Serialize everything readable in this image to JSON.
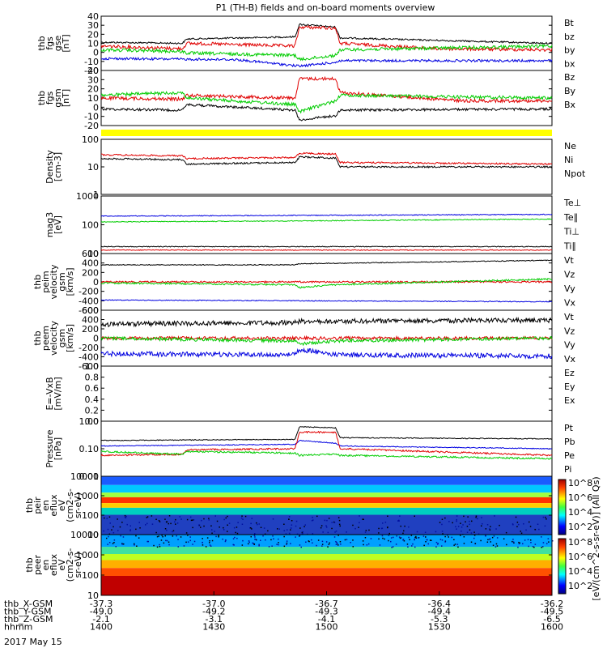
{
  "title": "P1 (TH-B) fields and on-board moments overview",
  "colors": {
    "black": "#000000",
    "red": "#e00000",
    "green": "#00cc00",
    "blue": "#0000e0",
    "yellow": "#ffff00"
  },
  "panels": [
    {
      "id": "fgs-gse",
      "ylabel": [
        "thb",
        "fgs",
        "gse",
        "[nT]"
      ],
      "yticks": [
        "40",
        "30",
        "20",
        "10",
        "0",
        "-10",
        "-20"
      ],
      "legend": [
        {
          "t": "Bt",
          "c": "black"
        },
        {
          "t": "bz",
          "c": "red"
        },
        {
          "t": "by",
          "c": "green"
        },
        {
          "t": "bx",
          "c": "blue"
        }
      ]
    },
    {
      "id": "fgs-gsm",
      "ylabel": [
        "thb",
        "fgs",
        "gsm",
        "[nT]"
      ],
      "yticks": [
        "40",
        "30",
        "20",
        "10",
        "0",
        "-10",
        "-20"
      ],
      "legend": [
        {
          "t": "Bz",
          "c": "red"
        },
        {
          "t": "By",
          "c": "green"
        },
        {
          "t": "Bx",
          "c": "black"
        }
      ]
    },
    {
      "id": "flag",
      "ylabel": [],
      "yticks": [],
      "legend": []
    },
    {
      "id": "density",
      "ylabel": [
        "Density",
        "[cm-3]"
      ],
      "yticks": [
        "100",
        "10",
        "1"
      ],
      "legend": [
        {
          "t": "Ne",
          "c": "red"
        },
        {
          "t": "Ni",
          "c": "black"
        },
        {
          "t": "Npot",
          "c": "blue"
        }
      ]
    },
    {
      "id": "temp",
      "ylabel": [
        "mag3",
        "[eV]"
      ],
      "yticks": [
        "1000",
        "100",
        "10"
      ],
      "legend": [
        {
          "t": "Te⊥",
          "c": "red"
        },
        {
          "t": "Te∥",
          "c": "black"
        },
        {
          "t": "Ti⊥",
          "c": "green"
        },
        {
          "t": "Ti∥",
          "c": "green"
        }
      ]
    },
    {
      "id": "peim",
      "ylabel": [
        "thb",
        "peim",
        "velocity",
        "gsm",
        "[km/s]"
      ],
      "yticks": [
        "600",
        "400",
        "200",
        "0",
        "-200",
        "-400",
        "-600"
      ],
      "legend": [
        {
          "t": "Vt",
          "c": "black"
        },
        {
          "t": "Vz",
          "c": "red"
        },
        {
          "t": "Vy",
          "c": "green"
        },
        {
          "t": "Vx",
          "c": "blue"
        }
      ]
    },
    {
      "id": "peem",
      "ylabel": [
        "thb",
        "peem",
        "velocity",
        "gsm",
        "[km/s]"
      ],
      "yticks": [
        "600",
        "400",
        "200",
        "0",
        "-200",
        "-400",
        "-600"
      ],
      "legend": [
        {
          "t": "Vt",
          "c": "black"
        },
        {
          "t": "Vz",
          "c": "red"
        },
        {
          "t": "Vy",
          "c": "green"
        },
        {
          "t": "Vx",
          "c": "blue"
        }
      ]
    },
    {
      "id": "efield",
      "ylabel": [
        "E=-VxB",
        "[mV/m]"
      ],
      "yticks": [
        "1.0",
        "0.8",
        "0.6",
        "0.4",
        "0.2",
        "0.0"
      ],
      "legend": [
        {
          "t": "Ez",
          "c": "red"
        },
        {
          "t": "Ey",
          "c": "green"
        },
        {
          "t": "Ex",
          "c": "blue"
        }
      ]
    },
    {
      "id": "pressure",
      "ylabel": [
        "Pressure",
        "[nPa]"
      ],
      "yticks": [
        "1.00",
        "0.10",
        "0.01"
      ],
      "legend": [
        {
          "t": "Pt",
          "c": "black"
        },
        {
          "t": "Pb",
          "c": "red"
        },
        {
          "t": "Pe",
          "c": "green"
        },
        {
          "t": "Pi",
          "c": "blue"
        }
      ]
    },
    {
      "id": "peir",
      "ylabel": [
        "thb",
        "peir",
        "en",
        "eflux",
        "eV",
        "(cm2-s-",
        "sr-eV)"
      ],
      "yticks": [
        "10000",
        "1000",
        "100",
        "10"
      ],
      "legend": []
    },
    {
      "id": "peer",
      "ylabel": [
        "thb",
        "peer",
        "en",
        "eflux",
        "eV",
        "(cm2-s-",
        "sr-eV)"
      ],
      "yticks": [
        "10000",
        "1000",
        "100",
        "10"
      ],
      "legend": []
    }
  ],
  "colorbar": {
    "label": "[eV/(cm^2-s-sr-eV)] (All Qs)",
    "ticks1": [
      "10^8",
      "10^6",
      "10^4",
      "10^2"
    ],
    "ticks2": [
      "10^8",
      "10^6",
      "10^4",
      "10^2"
    ]
  },
  "footer": {
    "rows": [
      {
        "name": "thb_X-GSM",
        "vals": [
          "-37.3",
          "-37.0",
          "-36.7",
          "-36.4",
          "-36.2"
        ]
      },
      {
        "name": "thb_Y-GSM",
        "vals": [
          "-49.0",
          "-49.2",
          "-49.3",
          "-49.4",
          "-49.5"
        ]
      },
      {
        "name": "thb_Z-GSM",
        "vals": [
          "-2.1",
          "-3.1",
          "-4.1",
          "-5.3",
          "-6.5"
        ]
      },
      {
        "name": "hhmm",
        "vals": [
          "1400",
          "1430",
          "1500",
          "1530",
          "1600"
        ]
      }
    ],
    "date": "2017 May 15"
  },
  "chart_data": {
    "type": "line",
    "x_ticks": [
      "1400",
      "1430",
      "1500",
      "1530",
      "1600"
    ],
    "series_summary": [
      {
        "panel": "fgs-gse",
        "name": "Bt",
        "values": [
          12,
          12,
          20,
          31,
          18,
          16,
          14
        ]
      },
      {
        "panel": "fgs-gse",
        "name": "bz",
        "values": [
          9,
          8,
          5,
          28,
          12,
          9,
          5
        ]
      },
      {
        "panel": "fgs-gse",
        "name": "by",
        "values": [
          5,
          -1,
          3,
          -3,
          3,
          5,
          8
        ]
      },
      {
        "panel": "fgs-gse",
        "name": "bx",
        "values": [
          -4,
          -5,
          -7,
          -10,
          -8,
          -8,
          -8
        ]
      },
      {
        "panel": "density",
        "name": "Ne",
        "values": [
          25,
          25,
          20,
          30,
          15,
          15,
          15
        ]
      },
      {
        "panel": "density",
        "name": "Ni",
        "values": [
          18,
          18,
          15,
          22,
          9,
          10,
          10
        ]
      },
      {
        "panel": "temp",
        "name": "Te∥",
        "values": [
          20,
          20,
          20,
          22,
          20,
          20,
          20
        ]
      },
      {
        "panel": "temp",
        "name": "Ti∥",
        "values": [
          600,
          600,
          650,
          600,
          700,
          750,
          800
        ]
      },
      {
        "panel": "temp",
        "name": "Ti⊥",
        "values": [
          800,
          800,
          850,
          800,
          900,
          950,
          1000
        ]
      },
      {
        "panel": "pressure",
        "name": "Pt",
        "values": [
          0.2,
          0.2,
          0.25,
          0.6,
          0.25,
          0.25,
          0.22
        ]
      },
      {
        "panel": "pressure",
        "name": "Pb",
        "values": [
          0.05,
          0.05,
          0.08,
          0.4,
          0.1,
          0.1,
          0.07
        ]
      },
      {
        "panel": "pressure",
        "name": "Pe",
        "values": [
          0.1,
          0.08,
          0.06,
          0.06,
          0.05,
          0.05,
          0.05
        ]
      },
      {
        "panel": "pressure",
        "name": "Pi",
        "values": [
          0.12,
          0.12,
          0.14,
          0.18,
          0.12,
          0.12,
          0.1
        ]
      }
    ]
  }
}
